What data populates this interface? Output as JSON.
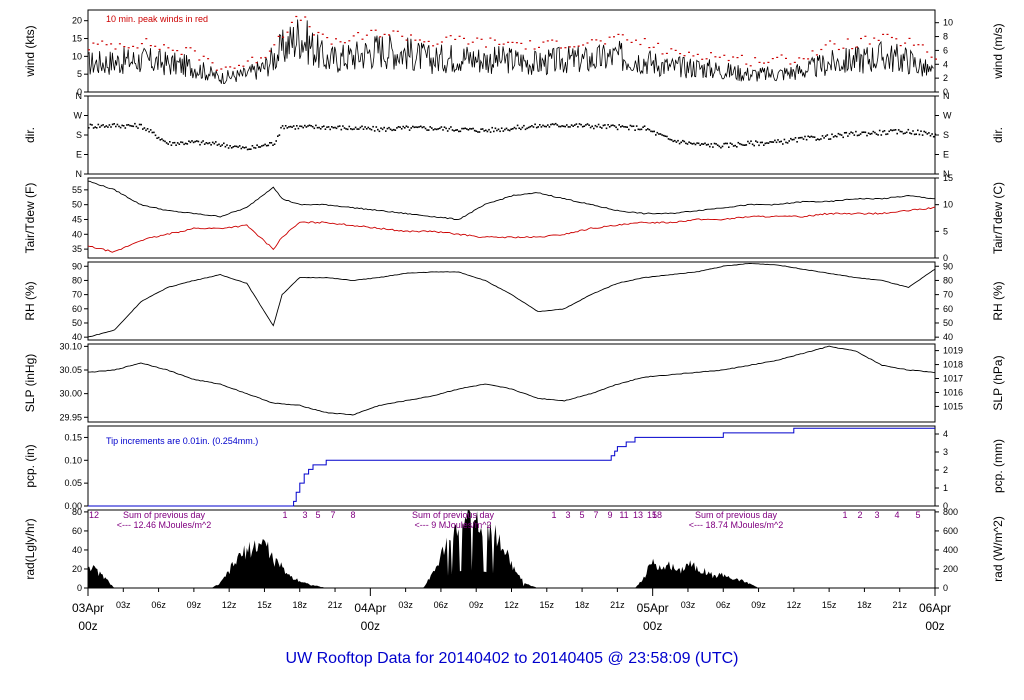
{
  "chart_data": {
    "type": "line",
    "title": "UW Rooftop Data for 20140402  to  20140405 @ 23:58:09  (UTC)",
    "x_ticks": [
      "03Apr",
      "03z",
      "06z",
      "09z",
      "12z",
      "15z",
      "18z",
      "21z",
      "04Apr",
      "03z",
      "06z",
      "09z",
      "12z",
      "15z",
      "18z",
      "21z",
      "05Apr",
      "03z",
      "06z",
      "09z",
      "12z",
      "15z",
      "18z",
      "21z",
      "06Apr"
    ],
    "x_subtick_label": "00z",
    "panels": [
      {
        "id": "wind",
        "left_label": "wind (kts)",
        "right_label": "wind (m/s)",
        "left_ticks": [
          "0",
          "5",
          "10",
          "15",
          "20"
        ],
        "right_ticks": [
          "0",
          "2",
          "4",
          "6",
          "8",
          "10"
        ],
        "ylim": [
          0,
          23
        ],
        "annotation": "10 min. peak winds in red",
        "series": [
          {
            "name": "wind speed (kts)",
            "color": "#000000",
            "x": [
              0,
              6,
              12,
              15,
              18,
              20,
              22,
              24,
              27,
              30,
              33,
              36,
              39,
              42,
              45,
              48,
              51,
              54,
              57,
              60,
              63,
              66,
              69,
              72,
              75,
              78,
              81,
              84,
              87,
              90,
              93,
              96
            ],
            "values": [
              8,
              9,
              7,
              4,
              5,
              7,
              12,
              16,
              9,
              10,
              12,
              11,
              9,
              10,
              9,
              9,
              8,
              9,
              9,
              10,
              9,
              7,
              7,
              6,
              5,
              5,
              6,
              8,
              9,
              10,
              9,
              5
            ]
          },
          {
            "name": "10 min. peak winds",
            "color": "#cc0000",
            "x": [
              0,
              6,
              12,
              15,
              18,
              20,
              22,
              24,
              27,
              30,
              33,
              36,
              39,
              42,
              45,
              48,
              51,
              54,
              57,
              60,
              63,
              66,
              69,
              72,
              75,
              78,
              81,
              84,
              87,
              90,
              93,
              96
            ],
            "values": [
              13,
              14,
              11,
              7,
              8,
              11,
              17,
              21,
              14,
              15,
              17,
              16,
              14,
              15,
              14,
              14,
              13,
              14,
              14,
              15,
              14,
              11,
              11,
              10,
              9,
              9,
              10,
              13,
              14,
              15,
              14,
              10
            ]
          }
        ]
      },
      {
        "id": "dir",
        "left_label": "dir.",
        "right_label": "dir.",
        "left_ticks": [
          "N",
          "E",
          "S",
          "W",
          "N"
        ],
        "right_ticks": [
          "N",
          "E",
          "S",
          "W",
          "N"
        ],
        "ylim": [
          0,
          360
        ],
        "series": [
          {
            "name": "wind direction (deg)",
            "color": "#000000",
            "x": [
              0,
              3,
              6,
              9,
              12,
              15,
              18,
              21,
              22,
              24,
              27,
              30,
              33,
              36,
              39,
              42,
              45,
              48,
              51,
              54,
              57,
              60,
              63,
              66,
              69,
              72,
              75,
              78,
              81,
              84,
              87,
              90,
              93,
              96
            ],
            "values": [
              225,
              228,
              225,
              145,
              150,
              140,
              120,
              145,
              225,
              220,
              220,
              215,
              210,
              215,
              215,
              210,
              205,
              215,
              225,
              230,
              225,
              220,
              215,
              160,
              140,
              135,
              145,
              150,
              165,
              175,
              190,
              195,
              200,
              185
            ]
          }
        ]
      },
      {
        "id": "temp",
        "left_label": "Tair/Tdew (F)",
        "right_label": "Tair/Tdew (C)",
        "left_ticks": [
          "35",
          "40",
          "45",
          "50",
          "55"
        ],
        "right_ticks": [
          "0",
          "5",
          "10",
          "15"
        ],
        "ylim": [
          32,
          59
        ],
        "series": [
          {
            "name": "Tair",
            "color": "#000000",
            "x": [
              0,
              3,
              6,
              9,
              12,
              15,
              18,
              21,
              22,
              24,
              27,
              30,
              33,
              36,
              39,
              42,
              45,
              48,
              51,
              54,
              57,
              60,
              63,
              66,
              69,
              72,
              75,
              78,
              81,
              84,
              87,
              90,
              93,
              96
            ],
            "values": [
              58,
              55,
              50,
              48,
              47,
              46,
              49,
              56,
              52,
              50,
              50,
              49,
              48,
              47,
              46,
              45,
              50,
              53,
              54,
              52,
              50,
              48,
              47,
              47,
              48,
              49,
              50,
              50,
              51,
              51,
              52,
              52,
              53,
              52
            ]
          },
          {
            "name": "Tdew",
            "color": "#cc0000",
            "x": [
              0,
              3,
              6,
              9,
              12,
              15,
              18,
              21,
              22,
              24,
              27,
              30,
              33,
              36,
              39,
              42,
              45,
              48,
              51,
              54,
              57,
              60,
              63,
              66,
              69,
              72,
              75,
              78,
              81,
              84,
              87,
              90,
              93,
              96
            ],
            "values": [
              36,
              34,
              38,
              40,
              42,
              42,
              43,
              35,
              39,
              44,
              44,
              43,
              42,
              41,
              41,
              40,
              39,
              39,
              39,
              40,
              42,
              43,
              44,
              44,
              45,
              45,
              46,
              46,
              46,
              47,
              47,
              47,
              48,
              49
            ]
          }
        ]
      },
      {
        "id": "rh",
        "left_label": "RH (%)",
        "right_label": "RH (%)",
        "left_ticks": [
          "40",
          "50",
          "60",
          "70",
          "80",
          "90"
        ],
        "right_ticks": [
          "40",
          "50",
          "60",
          "70",
          "80",
          "90"
        ],
        "ylim": [
          38,
          93
        ],
        "series": [
          {
            "name": "RH",
            "color": "#000000",
            "x": [
              0,
              3,
              6,
              9,
              12,
              15,
              18,
              21,
              22,
              24,
              27,
              30,
              33,
              36,
              39,
              42,
              45,
              48,
              51,
              54,
              57,
              60,
              63,
              66,
              69,
              72,
              75,
              78,
              81,
              84,
              87,
              90,
              93,
              96
            ],
            "values": [
              40,
              45,
              65,
              75,
              80,
              84,
              78,
              48,
              70,
              82,
              82,
              80,
              82,
              85,
              86,
              86,
              80,
              70,
              58,
              60,
              70,
              78,
              82,
              84,
              86,
              90,
              92,
              91,
              88,
              85,
              82,
              80,
              75,
              88
            ]
          }
        ]
      },
      {
        "id": "slp",
        "left_label": "SLP (inHg)",
        "right_label": "SLP (hPa)",
        "left_ticks": [
          "29.95",
          "30.00",
          "30.05",
          "30.10"
        ],
        "right_ticks": [
          "1015",
          "1016",
          "1017",
          "1018",
          "1019"
        ],
        "ylim": [
          29.94,
          30.105
        ],
        "series": [
          {
            "name": "SLP",
            "color": "#000000",
            "x": [
              0,
              3,
              6,
              9,
              12,
              15,
              18,
              21,
              24,
              27,
              30,
              33,
              36,
              39,
              42,
              45,
              48,
              51,
              54,
              57,
              60,
              63,
              66,
              69,
              72,
              75,
              78,
              81,
              84,
              87,
              90,
              93,
              96
            ],
            "values": [
              30.045,
              30.05,
              30.065,
              30.05,
              30.03,
              30.02,
              30.0,
              29.98,
              29.975,
              29.96,
              29.955,
              29.975,
              29.985,
              29.995,
              30.01,
              30.02,
              30.01,
              29.99,
              29.985,
              30.0,
              30.02,
              30.035,
              30.04,
              30.045,
              30.05,
              30.06,
              30.07,
              30.085,
              30.1,
              30.09,
              30.06,
              30.05,
              30.045
            ]
          }
        ]
      },
      {
        "id": "pcp",
        "left_label": "pcp. (in)",
        "right_label": "pcp. (mm)",
        "left_ticks": [
          "0.00",
          "0.05",
          "0.10",
          "0.15"
        ],
        "right_ticks": [
          "0",
          "1",
          "2",
          "3",
          "4"
        ],
        "ylim": [
          0,
          0.175
        ],
        "annotation": "Tip increments are 0.01in. (0.254mm.)",
        "series": [
          {
            "name": "cumulative precipitation (in)",
            "color": "#0000cc",
            "x": [
              0,
              23,
              23.3,
              23.6,
              24,
              24.5,
              25,
              25.5,
              26,
              27,
              59,
              59.3,
              59.7,
              60,
              61,
              62,
              70,
              72,
              80,
              96
            ],
            "values": [
              0,
              0,
              0.01,
              0.03,
              0.05,
              0.07,
              0.08,
              0.09,
              0.09,
              0.1,
              0.1,
              0.11,
              0.12,
              0.13,
              0.14,
              0.15,
              0.15,
              0.16,
              0.17,
              0.17
            ]
          }
        ]
      },
      {
        "id": "rad",
        "left_label": "rad(Lgly/hr)",
        "right_label": "rad (W/m^2)",
        "left_ticks": [
          "0",
          "20",
          "40",
          "60",
          "80"
        ],
        "right_ticks": [
          "0",
          "200",
          "400",
          "600",
          "800"
        ],
        "ylim": [
          0,
          82
        ],
        "hour_markers": [
          "12",
          "1",
          "3",
          "5",
          "7",
          "8",
          "1",
          "3",
          "5",
          "7",
          "9",
          "11",
          "13",
          "15",
          "18",
          "1",
          "2",
          "3",
          "4",
          "5"
        ],
        "daily_sums": [
          {
            "line1": "Sum of previous day",
            "line2": "<--- 12.46 MJoules/m^2"
          },
          {
            "line1": "Sum of previous day",
            "line2": "<--- 9 MJoules/m^2"
          },
          {
            "line1": "Sum of previous day",
            "line2": "<--- 18.74 MJoules/m^2"
          }
        ],
        "series": [
          {
            "name": "solar radiation",
            "color": "#000000",
            "x": [
              0,
              1,
              2,
              3,
              14,
              15,
              16,
              17,
              18,
              19,
              20,
              21,
              22,
              23,
              24,
              25,
              26,
              27,
              38,
              39,
              40,
              41,
              42,
              43,
              44,
              45,
              46,
              47,
              48,
              49,
              50,
              51,
              62,
              63,
              64,
              65,
              66,
              67,
              68,
              69,
              70,
              71,
              72,
              73,
              74,
              75,
              76
            ],
            "values": [
              25,
              18,
              10,
              0,
              0,
              5,
              18,
              32,
              40,
              45,
              50,
              30,
              22,
              12,
              8,
              4,
              2,
              0,
              0,
              15,
              35,
              55,
              70,
              75,
              72,
              68,
              60,
              45,
              25,
              10,
              3,
              0,
              0,
              10,
              30,
              20,
              25,
              18,
              28,
              22,
              18,
              12,
              15,
              10,
              8,
              5,
              0
            ]
          }
        ]
      }
    ]
  }
}
